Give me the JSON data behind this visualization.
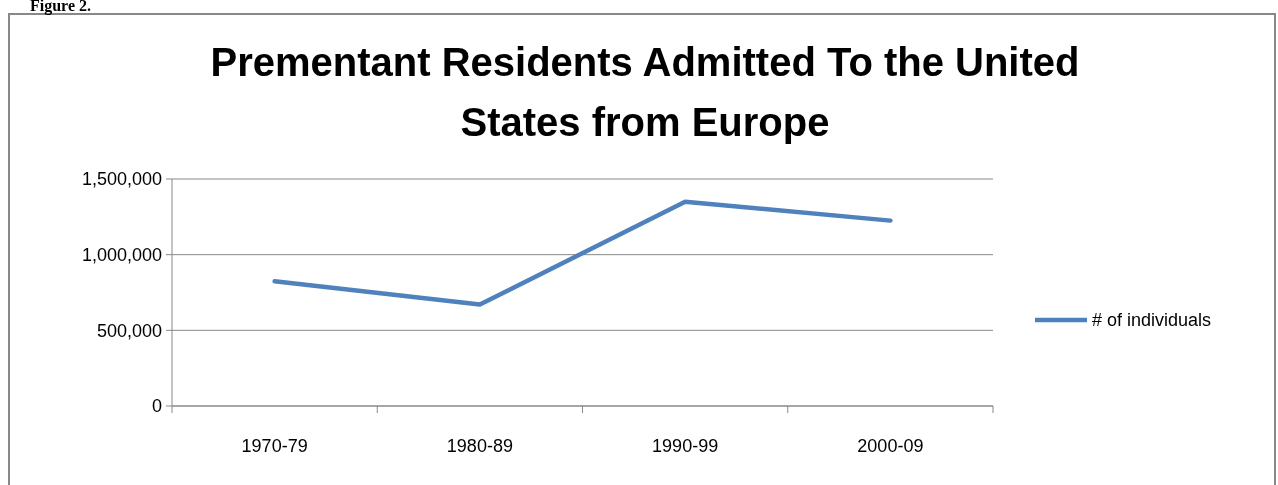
{
  "chart_data": {
    "type": "line",
    "title": "Prementant Residents Admitted To the United States from Europe",
    "annotations": [
      "Figure 2."
    ],
    "categories": [
      "1970-79",
      "1980-89",
      "1990-99",
      "2000-09"
    ],
    "series": [
      {
        "name": "# of individuals",
        "color": "#4f81bd",
        "values": [
          825000,
          670000,
          1350000,
          1225000
        ]
      }
    ],
    "ylim": [
      0,
      1500000
    ],
    "yticks": [
      {
        "value": 0,
        "label": "0"
      },
      {
        "value": 500000,
        "label": "500,000"
      },
      {
        "value": 1000000,
        "label": "1,000,000"
      },
      {
        "value": 1500000,
        "label": "1,500,000"
      }
    ],
    "grid": "y",
    "legend": "right",
    "marker": "none",
    "line_style": "solid"
  }
}
